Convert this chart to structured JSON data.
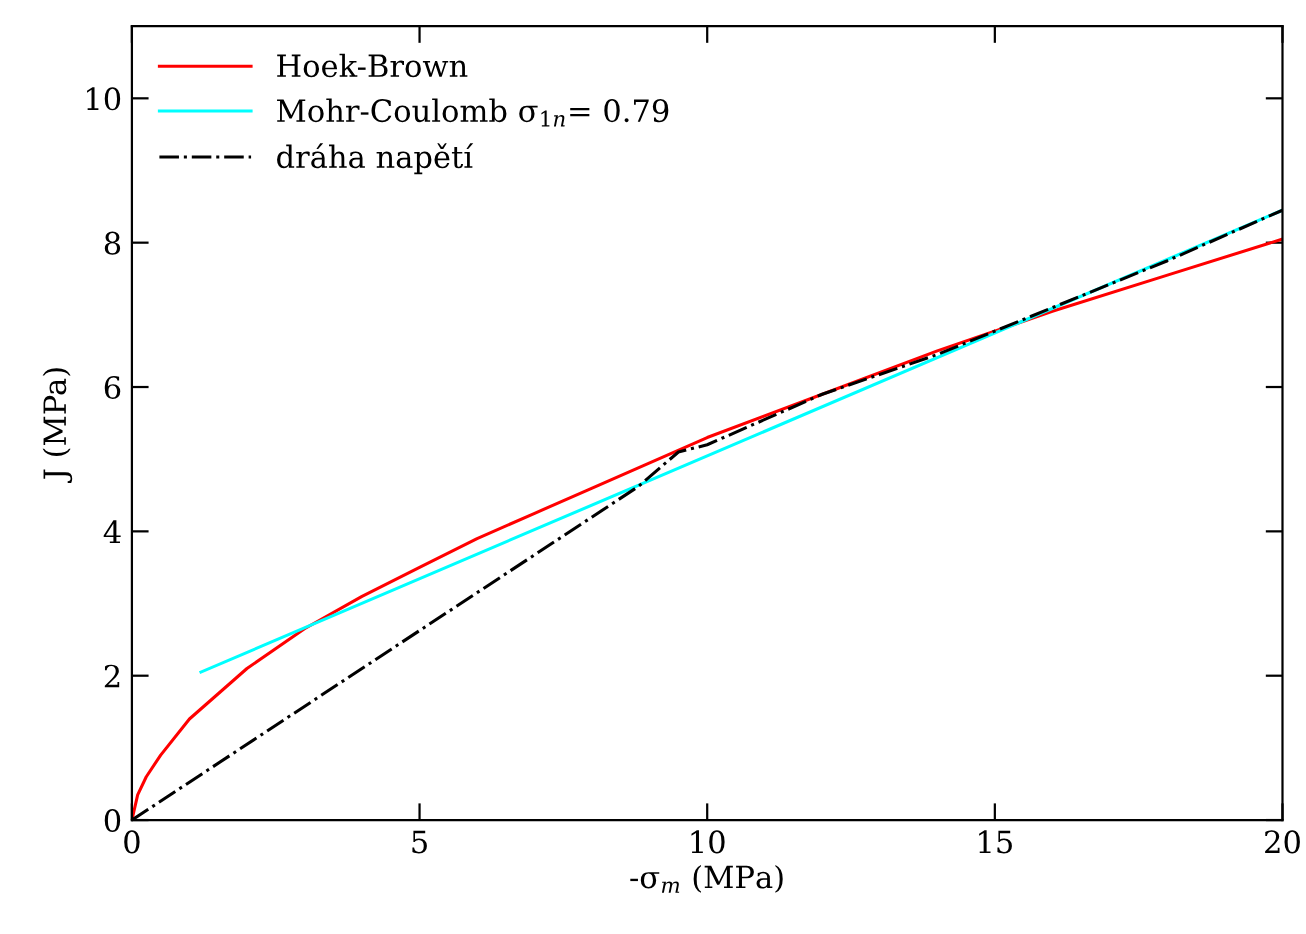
{
  "chart_data": {
    "type": "line",
    "xlabel": "-σ$_{m}$ (MPa)",
    "ylabel": "J (MPa)",
    "xlim": [
      0,
      20
    ],
    "ylim": [
      0,
      11
    ],
    "xticks": [
      0,
      5,
      10,
      15,
      20
    ],
    "yticks": [
      0,
      2,
      4,
      6,
      8,
      10
    ],
    "grid": false,
    "legend": "top left",
    "marker": "none",
    "series": [
      {
        "name": "Hoek-Brown",
        "color": "#ff0000",
        "line_style": "solid",
        "x": [
          0,
          0.1,
          0.25,
          0.5,
          1,
          2,
          3,
          4,
          5,
          6,
          7,
          8,
          9,
          10,
          12,
          14,
          16,
          18,
          20
        ],
        "values": [
          0,
          0.35,
          0.6,
          0.9,
          1.4,
          2.1,
          2.65,
          3.1,
          3.5,
          3.9,
          4.25,
          4.6,
          4.95,
          5.3,
          5.9,
          6.5,
          7.05,
          7.55,
          8.05
        ]
      },
      {
        "name": "Mohr-Coulomb σ$_{1n}$= 0.79",
        "color": "#00ffff",
        "line_style": "solid",
        "x": [
          1.2,
          20
        ],
        "values": [
          2.05,
          8.45
        ]
      },
      {
        "name": "dráha napětí",
        "color": "#000000",
        "line_style": "dashdot",
        "x": [
          0,
          8.8,
          9.5,
          10,
          12,
          14,
          16,
          18,
          20
        ],
        "values": [
          0,
          4.62,
          5.1,
          5.2,
          5.9,
          6.45,
          7.1,
          7.75,
          8.45
        ]
      }
    ]
  }
}
